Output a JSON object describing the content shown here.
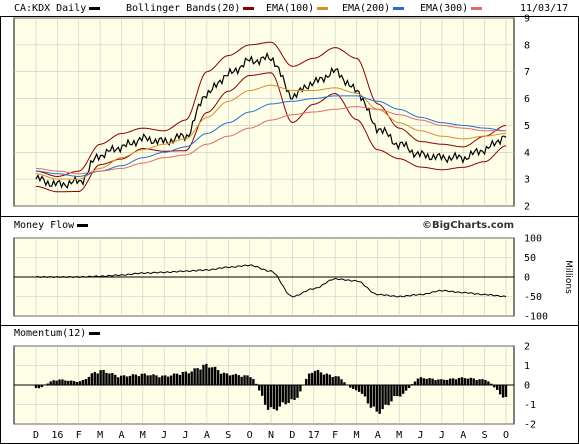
{
  "header": {
    "symbol_label": "CA:KDX Daily",
    "date": "11/03/17",
    "legend": [
      {
        "label": "Bollinger Bands(20)",
        "color": "#8b0000"
      },
      {
        "label": "EMA(100)",
        "color": "#d4922a"
      },
      {
        "label": "EMA(200)",
        "color": "#2a6dd4"
      },
      {
        "label": "EMA(300)",
        "color": "#e06a6a"
      }
    ]
  },
  "watermark": "©BigCharts.com",
  "colors": {
    "plot_bg": "#ffffe8",
    "grid": "#c8c8c8",
    "price": "#000000"
  },
  "x_axis": {
    "months": [
      "D",
      "16",
      "F",
      "M",
      "A",
      "M",
      "J",
      "J",
      "A",
      "S",
      "O",
      "N",
      "D",
      "17",
      "F",
      "M",
      "A",
      "M",
      "J",
      "J",
      "A",
      "S",
      "O"
    ]
  },
  "chart_data": [
    {
      "type": "line",
      "title": "CA:KDX Daily",
      "ylim": [
        2,
        9
      ],
      "yticks": [
        "2",
        "3",
        "4",
        "5",
        "6",
        "7",
        "8",
        "9"
      ],
      "x": [
        "D",
        "16",
        "F",
        "M",
        "A",
        "M",
        "J",
        "J",
        "A",
        "S",
        "O",
        "N",
        "D",
        "17",
        "F",
        "M",
        "A",
        "M",
        "J",
        "J",
        "A",
        "S",
        "O"
      ],
      "series": [
        {
          "name": "CA:KDX Daily",
          "values": [
            3.0,
            2.8,
            2.9,
            3.9,
            4.2,
            4.5,
            4.4,
            4.6,
            6.2,
            6.9,
            7.4,
            7.5,
            6.1,
            6.6,
            7.0,
            6.3,
            4.9,
            4.3,
            3.9,
            3.8,
            3.8,
            4.1,
            4.6
          ]
        },
        {
          "name": "Bollinger Bands(20)",
          "values": [
            3.3,
            3.1,
            3.3,
            4.3,
            4.7,
            4.9,
            4.8,
            5.2,
            7.0,
            7.6,
            8.0,
            8.1,
            7.2,
            7.5,
            7.9,
            7.5,
            5.8,
            4.9,
            4.4,
            4.3,
            4.2,
            4.6,
            5.0
          ]
        },
        {
          "name": "EMA(100)",
          "values": [
            3.2,
            3.0,
            3.0,
            3.4,
            3.8,
            4.1,
            4.3,
            4.5,
            5.3,
            5.9,
            6.3,
            6.5,
            6.3,
            6.3,
            6.4,
            6.2,
            5.6,
            5.1,
            4.8,
            4.6,
            4.5,
            4.6,
            4.7
          ]
        },
        {
          "name": "EMA(200)",
          "values": [
            3.3,
            3.2,
            3.1,
            3.3,
            3.5,
            3.8,
            4.0,
            4.2,
            4.7,
            5.1,
            5.5,
            5.8,
            5.9,
            6.0,
            6.1,
            6.1,
            5.9,
            5.6,
            5.3,
            5.1,
            5.0,
            4.9,
            4.8
          ]
        },
        {
          "name": "EMA(300)",
          "values": [
            3.4,
            3.3,
            3.2,
            3.3,
            3.4,
            3.6,
            3.8,
            3.9,
            4.3,
            4.6,
            4.9,
            5.2,
            5.4,
            5.5,
            5.6,
            5.7,
            5.6,
            5.4,
            5.2,
            5.0,
            4.9,
            4.8,
            4.8
          ]
        }
      ]
    },
    {
      "type": "line",
      "title": "Money Flow",
      "ylabel": "Millions",
      "ylim": [
        -100,
        100
      ],
      "yticks": [
        "100",
        "50",
        "0",
        "-50",
        "-100"
      ],
      "x": [
        "D",
        "16",
        "F",
        "M",
        "A",
        "M",
        "J",
        "J",
        "A",
        "S",
        "O",
        "N",
        "D",
        "17",
        "F",
        "M",
        "A",
        "M",
        "J",
        "J",
        "A",
        "S",
        "O"
      ],
      "series": [
        {
          "name": "Money Flow",
          "values": [
            0,
            0,
            0,
            2,
            5,
            10,
            12,
            15,
            18,
            25,
            30,
            15,
            -50,
            -30,
            -5,
            -10,
            -45,
            -50,
            -45,
            -35,
            -40,
            -45,
            -50
          ]
        }
      ]
    },
    {
      "type": "bar",
      "title": "Momentum(12)",
      "ylim": [
        -2,
        2
      ],
      "yticks": [
        "2",
        "1",
        "0",
        "-1",
        "-2"
      ],
      "categories": [
        "D",
        "16",
        "F",
        "M",
        "A",
        "M",
        "J",
        "J",
        "A",
        "S",
        "O",
        "N",
        "D",
        "17",
        "F",
        "M",
        "A",
        "M",
        "J",
        "J",
        "A",
        "S",
        "O"
      ],
      "values": [
        -0.2,
        0.3,
        0.2,
        0.8,
        0.5,
        0.6,
        0.5,
        0.7,
        1.1,
        0.6,
        0.5,
        -1.4,
        -0.9,
        0.8,
        0.5,
        -0.3,
        -1.5,
        -0.6,
        0.4,
        0.3,
        0.4,
        0.3,
        -0.7
      ]
    }
  ]
}
